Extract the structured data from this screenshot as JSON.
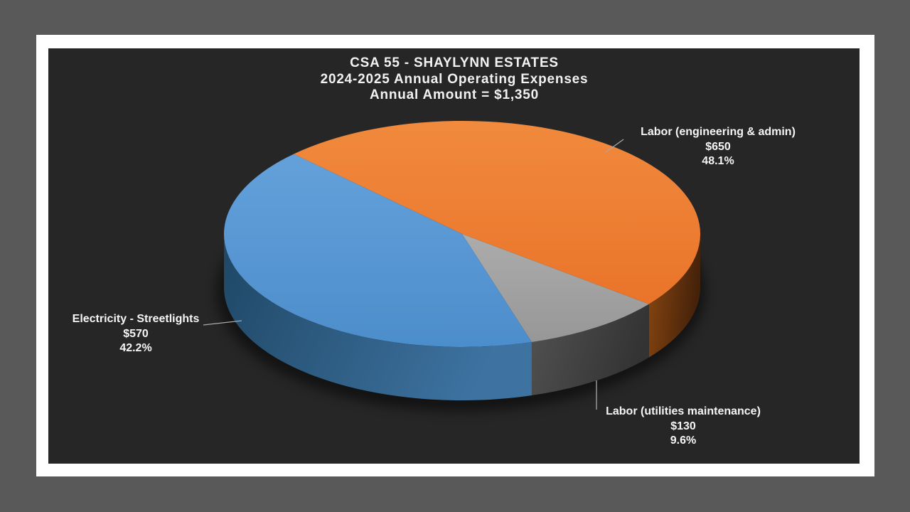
{
  "window": {
    "background_color": "#595959",
    "slide_background_color": "#FFFFFF",
    "chart_background_color": "#262626"
  },
  "title": {
    "line1": "CSA 55 - SHAYLYNN ESTATES",
    "line2": "2024-2025 Annual Operating Expenses",
    "line3": "Annual Amount = $1,350",
    "color": "#F2F2F2"
  },
  "chart_data": {
    "type": "pie",
    "style": "3d",
    "title": "CSA 55 - SHAYLYNN ESTATES",
    "subtitle": "2024-2025 Annual Operating Expenses",
    "total_label": "Annual Amount = $1,350",
    "total": 1350,
    "start_angle_deg": 315,
    "direction": "clockwise",
    "legend_position": "none",
    "labels_show": [
      "category",
      "value",
      "percent"
    ],
    "label_text_color": "#F5F5F5",
    "leader_line_color": "#A9A9A9",
    "slices": [
      {
        "label": "Labor (engineering & admin)",
        "value": 650,
        "amount_text": "$650",
        "percent": 48.1,
        "percent_text": "48.1%",
        "color": "#ED7D31",
        "top_gradient": [
          "#F18A3D",
          "#E9742A"
        ],
        "side_gradient": [
          "#8A4711",
          "#45220A"
        ]
      },
      {
        "label": "Labor (utilities maintenance)",
        "value": 130,
        "amount_text": "$130",
        "percent": 9.6,
        "percent_text": "9.6%",
        "color": "#A5A5A5",
        "top_gradient": [
          "#ACACAC",
          "#979797"
        ],
        "side_gradient": [
          "#525252",
          "#333333"
        ]
      },
      {
        "label": "Electricity - Streetlights",
        "value": 570,
        "amount_text": "$570",
        "percent": 42.2,
        "percent_text": "42.2%",
        "color": "#5B9BD5",
        "top_gradient": [
          "#64A1DB",
          "#4C8DCB"
        ],
        "side_gradient": [
          "#1F4765",
          "#3E73A1"
        ]
      }
    ]
  }
}
